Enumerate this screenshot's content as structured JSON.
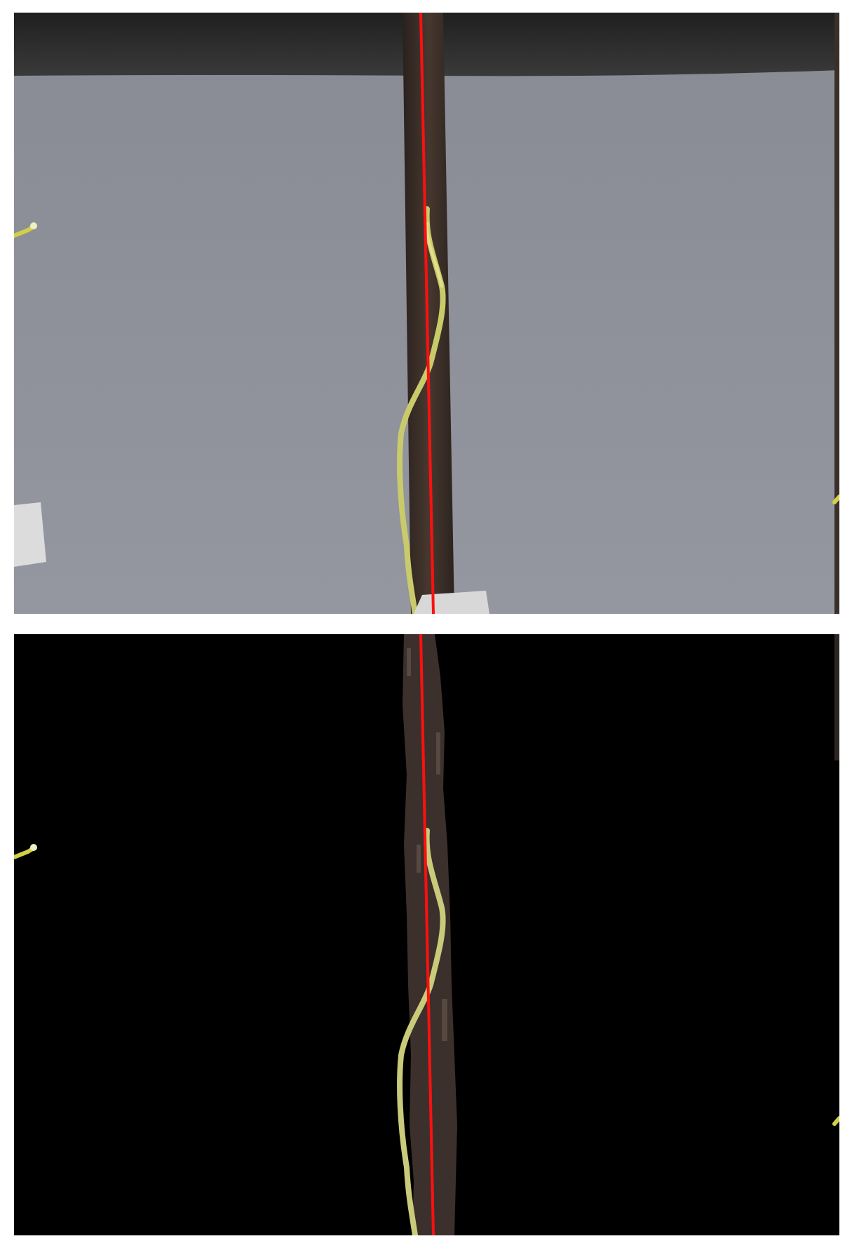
{
  "figure": {
    "panels": [
      {
        "name": "original-photo",
        "colors": {
          "background": "#8c8e96",
          "ceiling": "#2a2a2a",
          "pole": "#3d302b",
          "pole_shadow": "#2a211d",
          "plant_stem": "#c9cb6a",
          "plant_highlight": "#e2e08a",
          "card": "#dcdcdc",
          "axis_line": "#ff1010"
        }
      },
      {
        "name": "segmented-mask",
        "colors": {
          "background": "#000000",
          "pole": "#3b302c",
          "plant_stem": "#c9cb7a",
          "axis_line": "#ff1010"
        }
      }
    ]
  }
}
